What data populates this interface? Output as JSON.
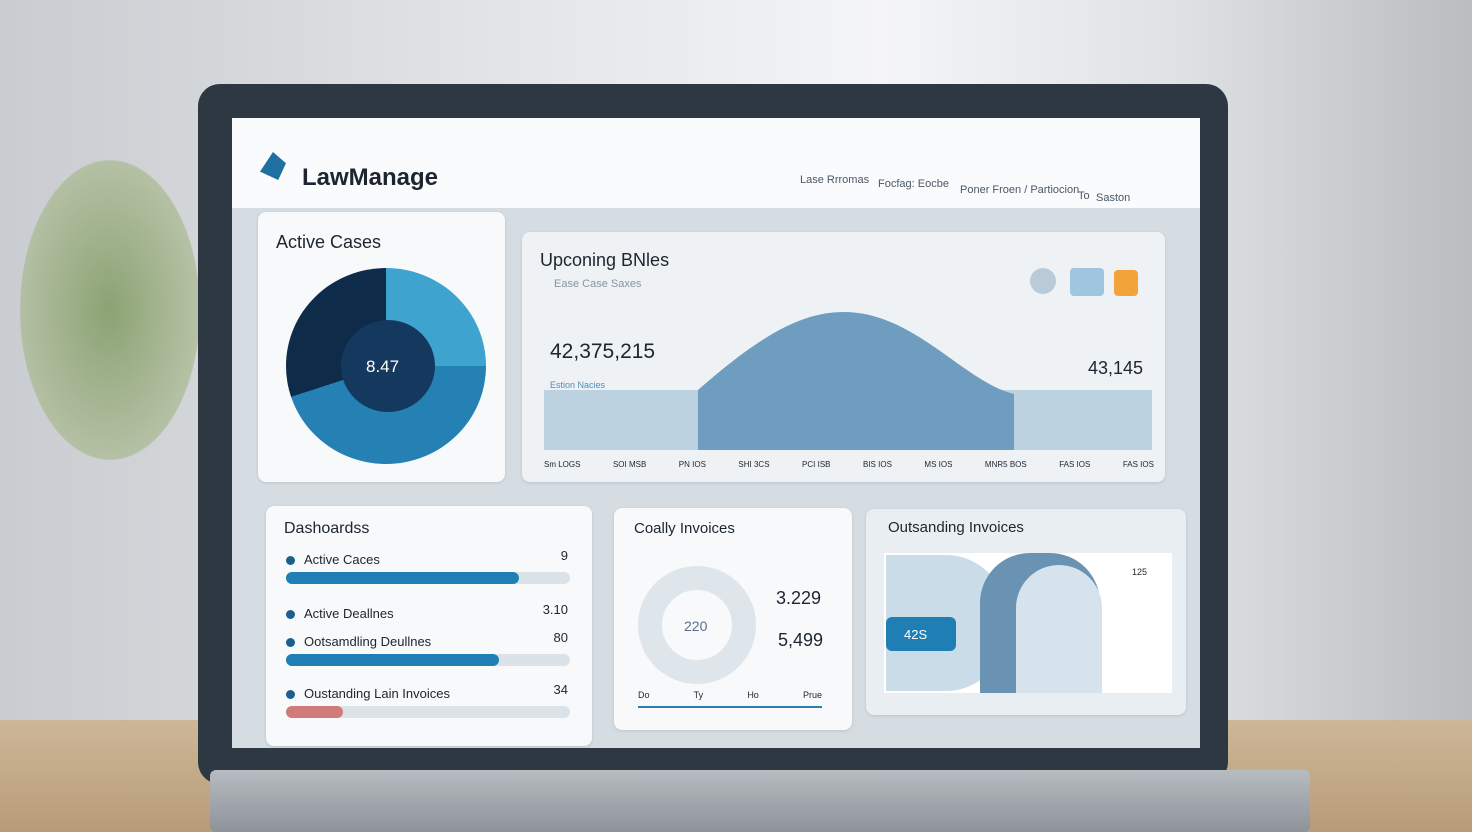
{
  "header": {
    "logo": "LawManage",
    "nav": [
      "Lase Rrromas",
      "Focfag: Eocbe",
      "Poner Froen / Partiocion",
      "To",
      "Saston"
    ]
  },
  "active_cases": {
    "title": "Active Cases",
    "center": "8.47"
  },
  "upcoming": {
    "title": "Upconing BNles",
    "subtitle": "Ease Case Saxes",
    "left_value": "42,375,215",
    "right_value": "43,145",
    "series_label": "Estion Nacies",
    "axis": [
      "Sm LOGS",
      "SOI MSB",
      "PN IOS",
      "SHI 3CS",
      "PCI ISB",
      "BIS IOS",
      "MS IOS",
      "MNR5 BOS",
      "FAS IOS",
      "FAS IOS"
    ]
  },
  "dashboards": {
    "title": "Dashoardss",
    "items": [
      {
        "label": "Active Caces",
        "value": "9"
      },
      {
        "label": "Active Deallnes",
        "value": "3.10"
      },
      {
        "label": "Ootsamdling Deullnes",
        "value": "80"
      },
      {
        "label": "Oustanding Lain Invoices",
        "value": "34"
      }
    ]
  },
  "coally": {
    "title": "Coally Invoices",
    "center": "220",
    "values": [
      "3.229",
      "5,499"
    ],
    "axis": [
      "Do",
      "Ty",
      "Ho",
      "Prue"
    ]
  },
  "outstanding": {
    "title": "Outsanding Invoices",
    "badge": "42S",
    "value": "125"
  }
}
